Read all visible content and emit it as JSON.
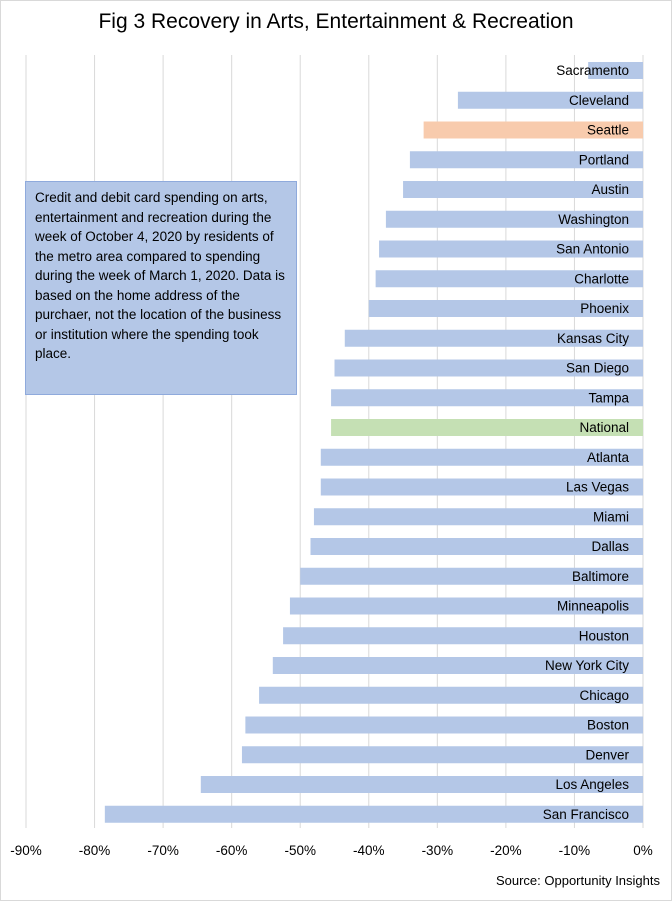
{
  "chart_data": {
    "type": "bar",
    "orientation": "horizontal",
    "title": "Fig 3 Recovery in Arts, Entertainment & Recreation",
    "categories": [
      "Sacramento",
      "Cleveland",
      "Seattle",
      "Portland",
      "Austin",
      "Washington",
      "San Antonio",
      "Charlotte",
      "Phoenix",
      "Kansas City",
      "San Diego",
      "Tampa",
      "National",
      "Atlanta",
      "Las Vegas",
      "Miami",
      "Dallas",
      "Baltimore",
      "Minneapolis",
      "Houston",
      "New York City",
      "Chicago",
      "Boston",
      "Denver",
      "Los Angeles",
      "San Francisco"
    ],
    "values": [
      -8,
      -27,
      -32,
      -34,
      -35,
      -37.5,
      -38.5,
      -39,
      -40,
      -43.5,
      -45,
      -45.5,
      -45.5,
      -47,
      -47,
      -48,
      -48.5,
      -50,
      -51.5,
      -52.5,
      -54,
      -56,
      -58,
      -58.5,
      -64.5,
      -78.5
    ],
    "colors": {
      "default": "#b4c7e7",
      "Seattle": "#f8cbad",
      "National": "#c5e0b4"
    },
    "xlim": [
      -90,
      0
    ],
    "xticks": [
      "-90%",
      "-80%",
      "-70%",
      "-60%",
      "-50%",
      "-40%",
      "-30%",
      "-20%",
      "-10%",
      "0%"
    ],
    "grid": "vertical",
    "annotation": "Credit and debit card spending on arts, entertainment  and recreation during the week of October 4, 2020 by residents of the metro area compared to spending during the week of March 1, 2020. Data is based on the home address of the purchaer, not the location of the business or institution where the spending took place.",
    "source": "Source: Opportunity Insights"
  }
}
